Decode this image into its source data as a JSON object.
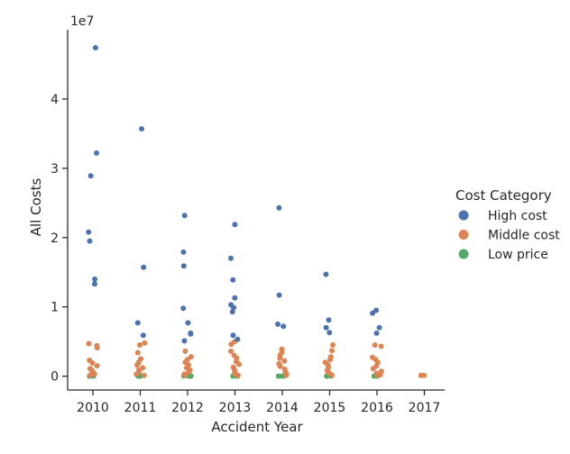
{
  "chart_data": {
    "type": "scatter",
    "subtype": "strip",
    "xlabel": "Accident Year",
    "ylabel": "All Costs",
    "y_offset_label": "1e7",
    "categories": [
      "2010",
      "2011",
      "2012",
      "2013",
      "2014",
      "2015",
      "2016",
      "2017"
    ],
    "ylim": [
      -2000000,
      50000000
    ],
    "y_ticks": [
      0,
      10000000,
      20000000,
      30000000,
      40000000
    ],
    "y_tick_labels": [
      "0",
      "1",
      "2",
      "3",
      "4"
    ],
    "grid": false,
    "legend": {
      "title": "Cost Category",
      "placement": "right",
      "entries": [
        {
          "label": "High cost",
          "color": "#4c72b0"
        },
        {
          "label": "Middle cost",
          "color": "#dd8452"
        },
        {
          "label": "Low price",
          "color": "#55a868"
        }
      ]
    },
    "series": [
      {
        "name": "High cost",
        "color": "#4c72b0",
        "points": [
          {
            "x": "2010",
            "y": 47400000
          },
          {
            "x": "2010",
            "y": 32200000
          },
          {
            "x": "2010",
            "y": 28900000
          },
          {
            "x": "2010",
            "y": 20800000
          },
          {
            "x": "2010",
            "y": 19500000
          },
          {
            "x": "2010",
            "y": 14000000
          },
          {
            "x": "2010",
            "y": 13300000
          },
          {
            "x": "2011",
            "y": 35700000
          },
          {
            "x": "2011",
            "y": 15700000
          },
          {
            "x": "2011",
            "y": 7700000
          },
          {
            "x": "2011",
            "y": 5900000
          },
          {
            "x": "2012",
            "y": 23200000
          },
          {
            "x": "2012",
            "y": 17900000
          },
          {
            "x": "2012",
            "y": 15900000
          },
          {
            "x": "2012",
            "y": 9800000
          },
          {
            "x": "2012",
            "y": 7700000
          },
          {
            "x": "2012",
            "y": 6200000
          },
          {
            "x": "2012",
            "y": 6100000
          },
          {
            "x": "2012",
            "y": 5100000
          },
          {
            "x": "2013",
            "y": 21900000
          },
          {
            "x": "2013",
            "y": 17000000
          },
          {
            "x": "2013",
            "y": 13900000
          },
          {
            "x": "2013",
            "y": 11300000
          },
          {
            "x": "2013",
            "y": 10300000
          },
          {
            "x": "2013",
            "y": 9900000
          },
          {
            "x": "2013",
            "y": 9300000
          },
          {
            "x": "2013",
            "y": 5900000
          },
          {
            "x": "2013",
            "y": 5300000
          },
          {
            "x": "2014",
            "y": 24300000
          },
          {
            "x": "2014",
            "y": 11700000
          },
          {
            "x": "2014",
            "y": 7500000
          },
          {
            "x": "2014",
            "y": 7200000
          },
          {
            "x": "2015",
            "y": 14700000
          },
          {
            "x": "2015",
            "y": 8100000
          },
          {
            "x": "2015",
            "y": 7000000
          },
          {
            "x": "2015",
            "y": 6300000
          },
          {
            "x": "2016",
            "y": 9500000
          },
          {
            "x": "2016",
            "y": 9100000
          },
          {
            "x": "2016",
            "y": 7000000
          },
          {
            "x": "2016",
            "y": 6200000
          }
        ]
      },
      {
        "name": "Middle cost",
        "color": "#dd8452",
        "points": [
          {
            "x": "2010",
            "y": 4700000
          },
          {
            "x": "2010",
            "y": 4400000
          },
          {
            "x": "2010",
            "y": 4100000
          },
          {
            "x": "2010",
            "y": 2300000
          },
          {
            "x": "2010",
            "y": 1900000
          },
          {
            "x": "2010",
            "y": 1500000
          },
          {
            "x": "2010",
            "y": 1100000
          },
          {
            "x": "2010",
            "y": 800000
          },
          {
            "x": "2010",
            "y": 500000
          },
          {
            "x": "2010",
            "y": 300000
          },
          {
            "x": "2010",
            "y": 200000
          },
          {
            "x": "2010",
            "y": 100000
          },
          {
            "x": "2011",
            "y": 4800000
          },
          {
            "x": "2011",
            "y": 4500000
          },
          {
            "x": "2011",
            "y": 3400000
          },
          {
            "x": "2011",
            "y": 2500000
          },
          {
            "x": "2011",
            "y": 2000000
          },
          {
            "x": "2011",
            "y": 1600000
          },
          {
            "x": "2011",
            "y": 1200000
          },
          {
            "x": "2011",
            "y": 900000
          },
          {
            "x": "2011",
            "y": 600000
          },
          {
            "x": "2011",
            "y": 300000
          },
          {
            "x": "2011",
            "y": 100000
          },
          {
            "x": "2012",
            "y": 3600000
          },
          {
            "x": "2012",
            "y": 2800000
          },
          {
            "x": "2012",
            "y": 2400000
          },
          {
            "x": "2012",
            "y": 2000000
          },
          {
            "x": "2012",
            "y": 1600000
          },
          {
            "x": "2012",
            "y": 1200000
          },
          {
            "x": "2012",
            "y": 900000
          },
          {
            "x": "2012",
            "y": 600000
          },
          {
            "x": "2012",
            "y": 300000
          },
          {
            "x": "2012",
            "y": 100000
          },
          {
            "x": "2013",
            "y": 5000000
          },
          {
            "x": "2013",
            "y": 4600000
          },
          {
            "x": "2013",
            "y": 3600000
          },
          {
            "x": "2013",
            "y": 3000000
          },
          {
            "x": "2013",
            "y": 2600000
          },
          {
            "x": "2013",
            "y": 2100000
          },
          {
            "x": "2013",
            "y": 1700000
          },
          {
            "x": "2013",
            "y": 1300000
          },
          {
            "x": "2013",
            "y": 900000
          },
          {
            "x": "2013",
            "y": 600000
          },
          {
            "x": "2013",
            "y": 300000
          },
          {
            "x": "2013",
            "y": 100000
          },
          {
            "x": "2014",
            "y": 3900000
          },
          {
            "x": "2014",
            "y": 3400000
          },
          {
            "x": "2014",
            "y": 3000000
          },
          {
            "x": "2014",
            "y": 2600000
          },
          {
            "x": "2014",
            "y": 2200000
          },
          {
            "x": "2014",
            "y": 1800000
          },
          {
            "x": "2014",
            "y": 1400000
          },
          {
            "x": "2014",
            "y": 1000000
          },
          {
            "x": "2014",
            "y": 600000
          },
          {
            "x": "2014",
            "y": 300000
          },
          {
            "x": "2014",
            "y": 100000
          },
          {
            "x": "2015",
            "y": 4500000
          },
          {
            "x": "2015",
            "y": 3700000
          },
          {
            "x": "2015",
            "y": 2800000
          },
          {
            "x": "2015",
            "y": 2400000
          },
          {
            "x": "2015",
            "y": 2000000
          },
          {
            "x": "2015",
            "y": 1600000
          },
          {
            "x": "2015",
            "y": 1200000
          },
          {
            "x": "2015",
            "y": 800000
          },
          {
            "x": "2015",
            "y": 500000
          },
          {
            "x": "2015",
            "y": 200000
          },
          {
            "x": "2015",
            "y": 100000
          },
          {
            "x": "2016",
            "y": 4500000
          },
          {
            "x": "2016",
            "y": 4300000
          },
          {
            "x": "2016",
            "y": 2700000
          },
          {
            "x": "2016",
            "y": 2400000
          },
          {
            "x": "2016",
            "y": 2000000
          },
          {
            "x": "2016",
            "y": 1500000
          },
          {
            "x": "2016",
            "y": 1100000
          },
          {
            "x": "2016",
            "y": 700000
          },
          {
            "x": "2016",
            "y": 400000
          },
          {
            "x": "2016",
            "y": 200000
          },
          {
            "x": "2016",
            "y": 100000
          },
          {
            "x": "2017",
            "y": 100000
          },
          {
            "x": "2017",
            "y": 100000
          }
        ]
      },
      {
        "name": "Low price",
        "color": "#55a868",
        "points": [
          {
            "x": "2010",
            "y": 30000
          },
          {
            "x": "2010",
            "y": 20000
          },
          {
            "x": "2010",
            "y": 10000
          },
          {
            "x": "2011",
            "y": 30000
          },
          {
            "x": "2011",
            "y": 20000
          },
          {
            "x": "2011",
            "y": 10000
          },
          {
            "x": "2012",
            "y": 30000
          },
          {
            "x": "2012",
            "y": 20000
          },
          {
            "x": "2012",
            "y": 10000
          },
          {
            "x": "2013",
            "y": 30000
          },
          {
            "x": "2013",
            "y": 20000
          },
          {
            "x": "2013",
            "y": 10000
          },
          {
            "x": "2014",
            "y": 30000
          },
          {
            "x": "2014",
            "y": 20000
          },
          {
            "x": "2014",
            "y": 10000
          },
          {
            "x": "2015",
            "y": 30000
          },
          {
            "x": "2015",
            "y": 20000
          },
          {
            "x": "2015",
            "y": 10000
          },
          {
            "x": "2016",
            "y": 30000
          },
          {
            "x": "2016",
            "y": 20000
          },
          {
            "x": "2016",
            "y": 10000
          }
        ]
      }
    ]
  }
}
